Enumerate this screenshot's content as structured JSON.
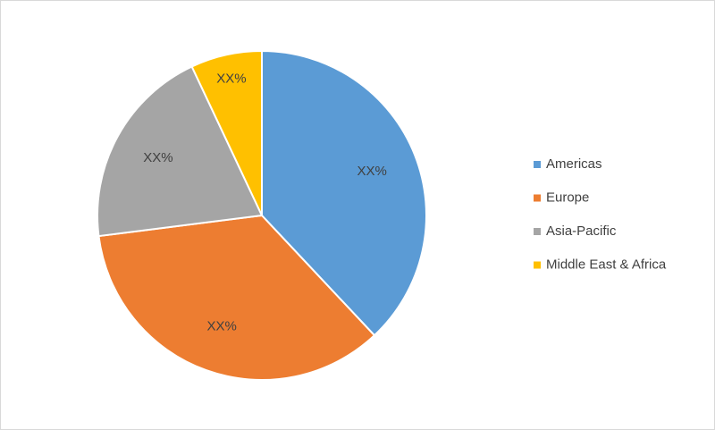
{
  "chart_data": {
    "type": "pie",
    "categories": [
      "Americas",
      "Europe",
      "Asia-Pacific",
      "Middle East & Africa"
    ],
    "values": [
      38,
      35,
      20,
      7
    ],
    "value_labels": [
      "XX%",
      "XX%",
      "XX%",
      "XX%"
    ],
    "colors": [
      "#5b9bd5",
      "#ed7d31",
      "#a5a5a5",
      "#ffc000"
    ],
    "legend": "right"
  }
}
